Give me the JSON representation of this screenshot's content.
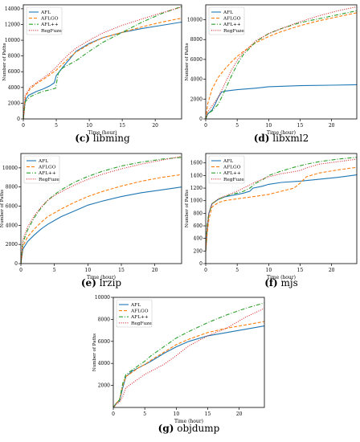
{
  "colors": {
    "afl": "#1f77b4",
    "aflgo": "#ff7f0e",
    "aflpp": "#2ca02c",
    "regfuze": "#d62728"
  },
  "chart_data": [
    {
      "type": "line",
      "caption_letter": "(c)",
      "caption_text": " libming",
      "xlabel": "Time (hour)",
      "ylabel": "Number of Paths",
      "xlim": [
        0,
        24
      ],
      "ylim": [
        0,
        14500
      ],
      "xticks": [
        0,
        5,
        10,
        15,
        20
      ],
      "yticks": [
        0,
        2000,
        4000,
        6000,
        8000,
        10000,
        12000,
        14000
      ],
      "legend_position": "top-left",
      "series": [
        {
          "name": "AFL",
          "style": "solid",
          "color": "afl",
          "x": [
            0,
            0.3,
            0.8,
            2,
            3,
            4,
            4.7,
            5,
            6,
            7,
            8,
            10,
            12,
            15,
            18,
            21,
            24
          ],
          "y": [
            0,
            2400,
            3000,
            3500,
            3800,
            4200,
            4600,
            5500,
            6600,
            7600,
            8600,
            9600,
            10300,
            11000,
            11500,
            11900,
            12300
          ]
        },
        {
          "name": "AFLGO",
          "style": "dashed",
          "color": "aflgo",
          "x": [
            0,
            0.3,
            1,
            2,
            3,
            4,
            5,
            6,
            7,
            8,
            10,
            12,
            15,
            18,
            21,
            24
          ],
          "y": [
            0,
            2800,
            3800,
            4500,
            5000,
            5600,
            6200,
            7000,
            7800,
            8500,
            9500,
            10300,
            11000,
            11700,
            12300,
            12800
          ]
        },
        {
          "name": "AFL++",
          "style": "dashdot",
          "color": "aflpp",
          "x": [
            0,
            0.3,
            1,
            2,
            3,
            4,
            4.9,
            5.3,
            6,
            8,
            10,
            12,
            15,
            18,
            21,
            24
          ],
          "y": [
            0,
            2200,
            2800,
            3200,
            3500,
            3700,
            3900,
            5800,
            6500,
            7400,
            8600,
            9700,
            11000,
            12300,
            13400,
            14300
          ]
        },
        {
          "name": "RegFuze",
          "style": "dotted",
          "color": "regfuze",
          "x": [
            0,
            0.3,
            1,
            2,
            3,
            4,
            5,
            6,
            7,
            8,
            10,
            12,
            15,
            18,
            21,
            24
          ],
          "y": [
            0,
            3000,
            4000,
            4600,
            5200,
            5800,
            6600,
            7500,
            8300,
            9000,
            10000,
            10900,
            11900,
            12700,
            13500,
            14200
          ]
        }
      ]
    },
    {
      "type": "line",
      "caption_letter": "(d)",
      "caption_text": " libxml2",
      "xlabel": "Time (hour)",
      "ylabel": "Number of Paths",
      "xlim": [
        0,
        24
      ],
      "ylim": [
        0,
        11500
      ],
      "xticks": [
        0,
        5,
        10,
        15,
        20
      ],
      "yticks": [
        0,
        2000,
        4000,
        6000,
        8000,
        10000
      ],
      "legend_position": "top-left",
      "series": [
        {
          "name": "AFL",
          "style": "solid",
          "color": "afl",
          "x": [
            0,
            0.3,
            1,
            1.5,
            2,
            2.5,
            3,
            5,
            8,
            10,
            15,
            20,
            24
          ],
          "y": [
            0,
            500,
            900,
            1500,
            2200,
            2700,
            2800,
            2950,
            3100,
            3250,
            3350,
            3400,
            3450
          ]
        },
        {
          "name": "AFLGO",
          "style": "dashed",
          "color": "aflgo",
          "x": [
            0,
            0.3,
            1,
            2,
            3,
            4,
            5,
            6,
            8,
            10,
            12,
            15,
            18,
            21,
            24
          ],
          "y": [
            0,
            1500,
            3000,
            4200,
            5000,
            5700,
            6300,
            6800,
            7700,
            8300,
            8800,
            9400,
            9900,
            10300,
            10700
          ]
        },
        {
          "name": "AFL++",
          "style": "dashdot",
          "color": "aflpp",
          "x": [
            0,
            0.3,
            1,
            2,
            3,
            4,
            5,
            6,
            8,
            10,
            12,
            15,
            18,
            21,
            24
          ],
          "y": [
            0,
            500,
            800,
            1500,
            2800,
            4200,
            5500,
            6500,
            7800,
            8600,
            9100,
            9700,
            10100,
            10500,
            10900
          ]
        },
        {
          "name": "RegFuze",
          "style": "dotted",
          "color": "regfuze",
          "x": [
            0,
            0.3,
            1,
            2,
            3,
            4,
            5,
            6,
            8,
            10,
            12,
            15,
            18,
            21,
            24
          ],
          "y": [
            0,
            700,
            1300,
            2200,
            3500,
            4800,
            5900,
            6700,
            7900,
            8600,
            9100,
            9800,
            10400,
            10900,
            11300
          ]
        }
      ]
    },
    {
      "type": "line",
      "caption_letter": "(e)",
      "caption_text": " lrzip",
      "xlabel": "Time (hour)",
      "ylabel": "Number of Paths",
      "xlim": [
        0,
        24
      ],
      "ylim": [
        0,
        11500
      ],
      "xticks": [
        0,
        5,
        10,
        15,
        20
      ],
      "yticks": [
        0,
        2000,
        4000,
        6000,
        8000,
        10000
      ],
      "legend_position": "top-left",
      "series": [
        {
          "name": "AFL",
          "style": "solid",
          "color": "afl",
          "x": [
            0,
            0.3,
            1,
            2,
            3,
            4,
            5,
            6,
            8,
            10,
            12,
            15,
            18,
            21,
            24
          ],
          "y": [
            0,
            1500,
            2300,
            3000,
            3600,
            4100,
            4500,
            4900,
            5500,
            6100,
            6500,
            7000,
            7400,
            7700,
            8000
          ]
        },
        {
          "name": "AFLGO",
          "style": "dashed",
          "color": "aflgo",
          "x": [
            0,
            0.3,
            1,
            2,
            3,
            4,
            5,
            6,
            8,
            10,
            12,
            15,
            18,
            21,
            24
          ],
          "y": [
            0,
            1800,
            2800,
            3600,
            4300,
            4900,
            5300,
            5700,
            6400,
            7000,
            7500,
            8100,
            8600,
            9000,
            9300
          ]
        },
        {
          "name": "AFL++",
          "style": "dashdot",
          "color": "aflpp",
          "x": [
            0,
            0.3,
            1,
            2,
            3,
            4,
            5,
            6,
            8,
            10,
            12,
            15,
            18,
            21,
            24
          ],
          "y": [
            0,
            2200,
            3500,
            4800,
            5800,
            6600,
            7200,
            7700,
            8500,
            9100,
            9600,
            10200,
            10600,
            10900,
            11100
          ]
        },
        {
          "name": "RegFuze",
          "style": "dotted",
          "color": "regfuze",
          "x": [
            0,
            0.3,
            1,
            2,
            3,
            4,
            5,
            6,
            8,
            10,
            12,
            15,
            18,
            21,
            24
          ],
          "y": [
            0,
            2500,
            3800,
            5000,
            5900,
            6600,
            7100,
            7500,
            8200,
            8800,
            9300,
            9900,
            10400,
            10800,
            11200
          ]
        }
      ]
    },
    {
      "type": "line",
      "caption_letter": "(f)",
      "caption_text": " mjs",
      "xlabel": "Time (hour)",
      "ylabel": "Number of Paths",
      "xlim": [
        0,
        24
      ],
      "ylim": [
        0,
        1750
      ],
      "xticks": [
        0,
        5,
        10,
        15,
        20
      ],
      "yticks": [
        0,
        200,
        400,
        600,
        800,
        1000,
        1200,
        1400,
        1600
      ],
      "legend_position": "top-left",
      "series": [
        {
          "name": "AFL",
          "style": "solid",
          "color": "afl",
          "x": [
            0,
            0.2,
            0.5,
            1,
            2,
            3,
            4,
            5,
            6,
            7,
            7.5,
            9,
            10,
            12,
            15,
            18,
            21,
            24
          ],
          "y": [
            200,
            500,
            800,
            950,
            1020,
            1060,
            1080,
            1100,
            1120,
            1150,
            1200,
            1230,
            1260,
            1290,
            1310,
            1340,
            1370,
            1410
          ]
        },
        {
          "name": "AFLGO",
          "style": "dashed",
          "color": "aflgo",
          "x": [
            0,
            0.2,
            0.5,
            1,
            2,
            3,
            5,
            8,
            10,
            12,
            14,
            15,
            16,
            18,
            21,
            24
          ],
          "y": [
            200,
            450,
            700,
            900,
            970,
            1000,
            1030,
            1070,
            1100,
            1150,
            1200,
            1280,
            1380,
            1440,
            1490,
            1530
          ]
        },
        {
          "name": "AFL++",
          "style": "dashdot",
          "color": "aflpp",
          "x": [
            0,
            0.2,
            0.5,
            1,
            2,
            3,
            4,
            5,
            6,
            7,
            8,
            9,
            10,
            12,
            14,
            16,
            18,
            21,
            24
          ],
          "y": [
            200,
            600,
            800,
            950,
            1020,
            1060,
            1100,
            1120,
            1150,
            1200,
            1280,
            1330,
            1400,
            1470,
            1530,
            1580,
            1620,
            1660,
            1690
          ]
        },
        {
          "name": "RegFuze",
          "style": "dotted",
          "color": "regfuze",
          "x": [
            0,
            0.2,
            0.5,
            1,
            2,
            3,
            4,
            5,
            6,
            7,
            8,
            10,
            12,
            14,
            15,
            16,
            18,
            21,
            24
          ],
          "y": [
            200,
            550,
            800,
            950,
            1030,
            1070,
            1110,
            1150,
            1200,
            1250,
            1300,
            1380,
            1430,
            1460,
            1480,
            1520,
            1580,
            1620,
            1660
          ]
        }
      ]
    },
    {
      "type": "line",
      "caption_letter": "(g)",
      "caption_text": " objdump",
      "xlabel": "Time (hour)",
      "ylabel": "Number of Paths",
      "xlim": [
        0,
        24
      ],
      "ylim": [
        0,
        10000
      ],
      "xticks": [
        0,
        5,
        10,
        15,
        20
      ],
      "yticks": [
        2000,
        4000,
        6000,
        8000,
        10000
      ],
      "legend_position": "top-left",
      "series": [
        {
          "name": "AFL",
          "style": "solid",
          "color": "afl",
          "x": [
            0,
            0.5,
            1,
            1.5,
            2,
            3,
            4,
            5,
            6,
            8,
            10,
            12,
            15,
            18,
            21,
            24
          ],
          "y": [
            0,
            400,
            600,
            1800,
            2800,
            3300,
            3600,
            3900,
            4200,
            4900,
            5500,
            6000,
            6500,
            6800,
            7100,
            7400
          ]
        },
        {
          "name": "AFLGO",
          "style": "dashed",
          "color": "aflgo",
          "x": [
            0,
            0.5,
            1,
            1.5,
            2,
            3,
            4,
            5,
            6,
            8,
            10,
            12,
            15,
            18,
            21,
            24
          ],
          "y": [
            0,
            400,
            700,
            2000,
            2800,
            3200,
            3600,
            3900,
            4300,
            5000,
            5700,
            6200,
            6800,
            7200,
            7500,
            7800
          ]
        },
        {
          "name": "AFL++",
          "style": "dashdot",
          "color": "aflpp",
          "x": [
            0,
            0.5,
            1,
            1.5,
            2,
            3,
            4,
            5,
            6,
            8,
            10,
            12,
            15,
            18,
            21,
            24
          ],
          "y": [
            0,
            400,
            700,
            2200,
            3000,
            3400,
            3800,
            4200,
            4700,
            5500,
            6300,
            6900,
            7700,
            8400,
            9000,
            9500
          ]
        },
        {
          "name": "RegFuze",
          "style": "dotted",
          "color": "regfuze",
          "x": [
            0,
            0.5,
            1,
            1.5,
            2,
            3,
            4,
            5,
            6,
            8,
            10,
            12,
            15,
            18,
            21,
            24
          ],
          "y": [
            0,
            300,
            500,
            1000,
            1800,
            2200,
            2600,
            3000,
            3300,
            3900,
            4700,
            5600,
            6500,
            7200,
            8200,
            9000
          ]
        }
      ]
    }
  ]
}
